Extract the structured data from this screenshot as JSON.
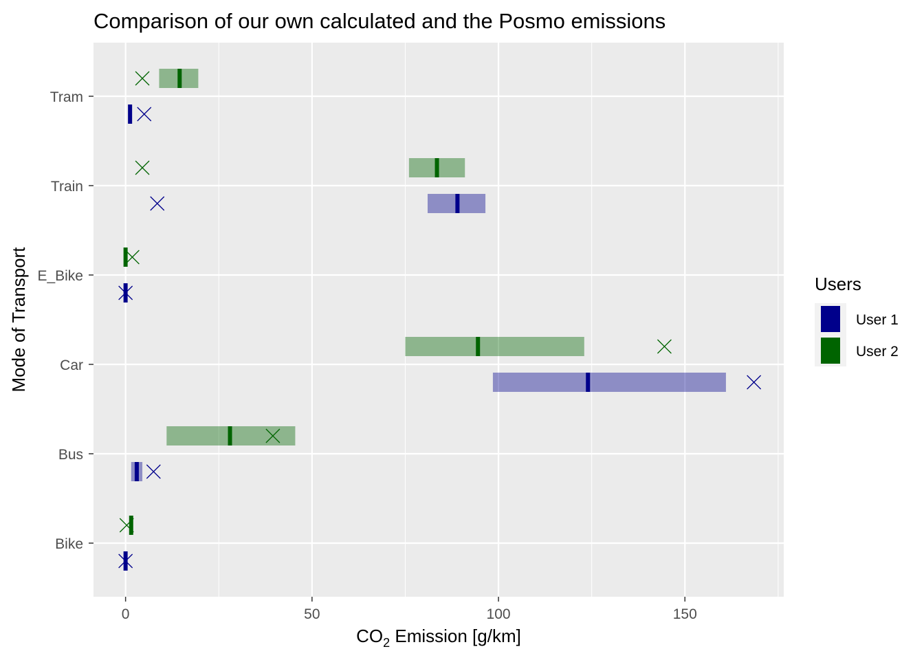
{
  "chart_data": {
    "type": "bar",
    "title": "Comparison of our own calculated and the Posmo emissions",
    "xlabel": {
      "prefix": "CO",
      "subscript": "2",
      "suffix": " Emission [g/km]"
    },
    "ylabel": "Mode of Transport",
    "xlim": [
      -8.6,
      176.5
    ],
    "x_ticks": [
      0,
      50,
      100,
      150
    ],
    "x_minor_ticks": [
      25,
      75,
      125,
      175
    ],
    "categories": [
      "Bike",
      "Bus",
      "Car",
      "E_Bike",
      "Train",
      "Tram"
    ],
    "grid": true,
    "legend": {
      "title": "Users",
      "position": "right",
      "entries": [
        {
          "name": "User 1",
          "color": "#00008b"
        },
        {
          "name": "User 2",
          "color": "#006400"
        }
      ]
    },
    "series": [
      {
        "name": "User 1",
        "color": "#00008b",
        "dodge": "lower",
        "ranges": [
          {
            "category": "Bike",
            "min": -0.3,
            "max": 0.3,
            "median": 0,
            "posmo": 0
          },
          {
            "category": "Bus",
            "min": 1.5,
            "max": 4.5,
            "median": 3,
            "posmo": 7.5
          },
          {
            "category": "Car",
            "min": 98.5,
            "max": 161,
            "median": 124,
            "posmo": 168.5
          },
          {
            "category": "E_Bike",
            "min": -0.3,
            "max": 0.3,
            "median": 0,
            "posmo": 0
          },
          {
            "category": "Train",
            "min": 81,
            "max": 96.5,
            "median": 89,
            "posmo": 8.5
          },
          {
            "category": "Tram",
            "min": 0.8,
            "max": 1.6,
            "median": 1.2,
            "posmo": 5
          }
        ]
      },
      {
        "name": "User 2",
        "color": "#006400",
        "dodge": "upper",
        "ranges": [
          {
            "category": "Bike",
            "min": 1.2,
            "max": 1.8,
            "median": 1.5,
            "posmo": 0.3
          },
          {
            "category": "Bus",
            "min": 11,
            "max": 45.5,
            "median": 28,
            "posmo": 39.5
          },
          {
            "category": "Car",
            "min": 75,
            "max": 123,
            "median": 94.5,
            "posmo": 144.5
          },
          {
            "category": "E_Bike",
            "min": -0.3,
            "max": 0.3,
            "median": 0,
            "posmo": 1.8
          },
          {
            "category": "Train",
            "min": 76,
            "max": 91,
            "median": 83.5,
            "posmo": 4.5
          },
          {
            "category": "Tram",
            "min": 9,
            "max": 19.5,
            "median": 14.5,
            "posmo": 4.5
          }
        ]
      }
    ]
  }
}
